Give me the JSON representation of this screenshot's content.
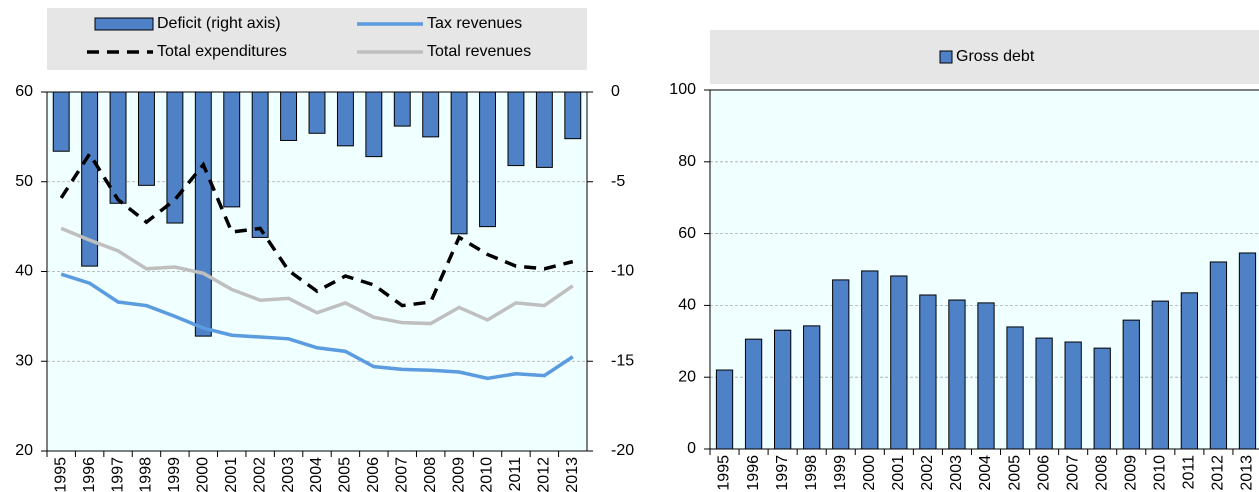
{
  "chart_data": [
    {
      "type": "combo",
      "categories": [
        "1995",
        "1996",
        "1997",
        "1998",
        "1999",
        "2000",
        "2001",
        "2002",
        "2003",
        "2004",
        "2005",
        "2006",
        "2007",
        "2008",
        "2009",
        "2010",
        "2011",
        "2012",
        "2013"
      ],
      "series": [
        {
          "name": "Deficit (right axis)",
          "kind": "bar",
          "axis": "y2",
          "color": "#4f81c7",
          "values": [
            -3.3,
            -9.7,
            -6.2,
            -5.2,
            -7.3,
            -13.6,
            -6.4,
            -8.1,
            -2.7,
            -2.3,
            -3.0,
            -3.6,
            -1.9,
            -2.5,
            -7.9,
            -7.5,
            -4.1,
            -4.2,
            -2.6
          ]
        },
        {
          "name": "Total expenditures",
          "kind": "line",
          "dashed": true,
          "color": "#000000",
          "values": [
            48.2,
            53.1,
            48.0,
            45.5,
            48.0,
            51.9,
            44.4,
            44.8,
            40.1,
            37.8,
            39.5,
            38.5,
            36.2,
            36.6,
            43.8,
            41.9,
            40.6,
            40.3,
            41.1
          ]
        },
        {
          "name": "Tax revenues",
          "kind": "line",
          "dashed": false,
          "color": "#5b9bdf",
          "values": [
            39.7,
            38.7,
            36.6,
            36.2,
            35.0,
            33.7,
            32.9,
            32.7,
            32.5,
            31.5,
            31.1,
            29.4,
            29.1,
            29.0,
            28.8,
            28.1,
            28.6,
            28.4,
            30.5
          ]
        },
        {
          "name": "Total revenues",
          "kind": "line",
          "dashed": false,
          "color": "#bfbfbf",
          "values": [
            44.8,
            43.5,
            42.3,
            40.3,
            40.5,
            39.8,
            38.0,
            36.8,
            37.0,
            35.4,
            36.5,
            34.9,
            34.3,
            34.2,
            36.0,
            34.6,
            36.5,
            36.2,
            38.4
          ]
        }
      ],
      "ylim": [
        20,
        60
      ],
      "yticks": [
        20,
        30,
        40,
        50,
        60
      ],
      "y2lim": [
        -20,
        0
      ],
      "y2ticks": [
        -20,
        -15,
        -10,
        -5,
        0
      ],
      "grid": true
    },
    {
      "type": "bar",
      "categories": [
        "1995",
        "1996",
        "1997",
        "1998",
        "1999",
        "2000",
        "2001",
        "2002",
        "2003",
        "2004",
        "2005",
        "2006",
        "2007",
        "2008",
        "2009",
        "2010",
        "2011",
        "2012",
        "2013"
      ],
      "series": [
        {
          "name": "Gross debt",
          "kind": "bar",
          "color": "#4f81c7",
          "values": [
            22.0,
            30.6,
            33.1,
            34.3,
            47.1,
            49.6,
            48.2,
            42.9,
            41.5,
            40.7,
            34.0,
            30.9,
            29.8,
            28.1,
            35.9,
            41.2,
            43.5,
            52.1,
            54.6
          ]
        }
      ],
      "ylim": [
        0,
        100
      ],
      "yticks": [
        0,
        20,
        40,
        60,
        80,
        100
      ],
      "grid": true
    }
  ]
}
